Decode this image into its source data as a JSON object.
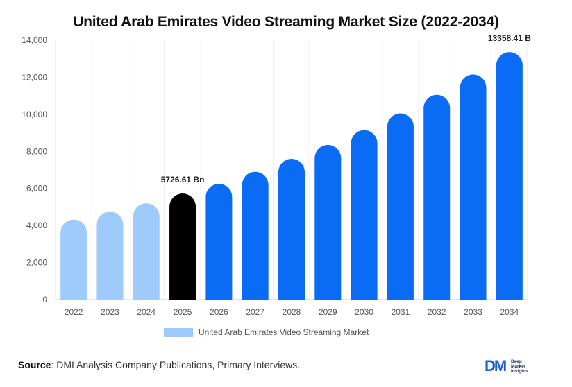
{
  "title": "United Arab Emirates Video Streaming Market Size (2022-2034)",
  "chart_data": {
    "type": "bar",
    "title": "United Arab Emirates Video Streaming Market Size (2022-2034)",
    "categories": [
      "2022",
      "2023",
      "2024",
      "2025",
      "2026",
      "2027",
      "2028",
      "2029",
      "2030",
      "2031",
      "2032",
      "2033",
      "2034"
    ],
    "series": [
      {
        "name": "United Arab Emirates Video Streaming Market",
        "values": [
          4320,
          4750,
          5200,
          5726.61,
          6250,
          6900,
          7600,
          8350,
          9150,
          10050,
          11050,
          12150,
          13358.41
        ]
      }
    ],
    "ylim": [
      0,
      14000
    ],
    "yticks": [
      0,
      2000,
      4000,
      6000,
      8000,
      10000,
      12000,
      14000
    ],
    "ytick_labels": [
      "0",
      "2,000",
      "4,000",
      "6,000",
      "8,000",
      "10,000",
      "12,000",
      "14,000"
    ],
    "annotations": [
      {
        "category": "2025",
        "text": "5726.61 Bn"
      },
      {
        "category": "2034",
        "text": "13358.41 B"
      }
    ],
    "colors": {
      "historical": "#9ecbfb",
      "base_year": "#000000",
      "forecast": "#0a6cf5",
      "grid": "#e6e6e6"
    },
    "grid": "vertical",
    "legend_position": "bottom"
  },
  "source": {
    "label": "Source",
    "text": ": DMI Analysis Company Publications, Primary Interviews."
  },
  "logo": {
    "mark": "DM",
    "lines": [
      "Deep",
      "Market",
      "Insights"
    ]
  }
}
